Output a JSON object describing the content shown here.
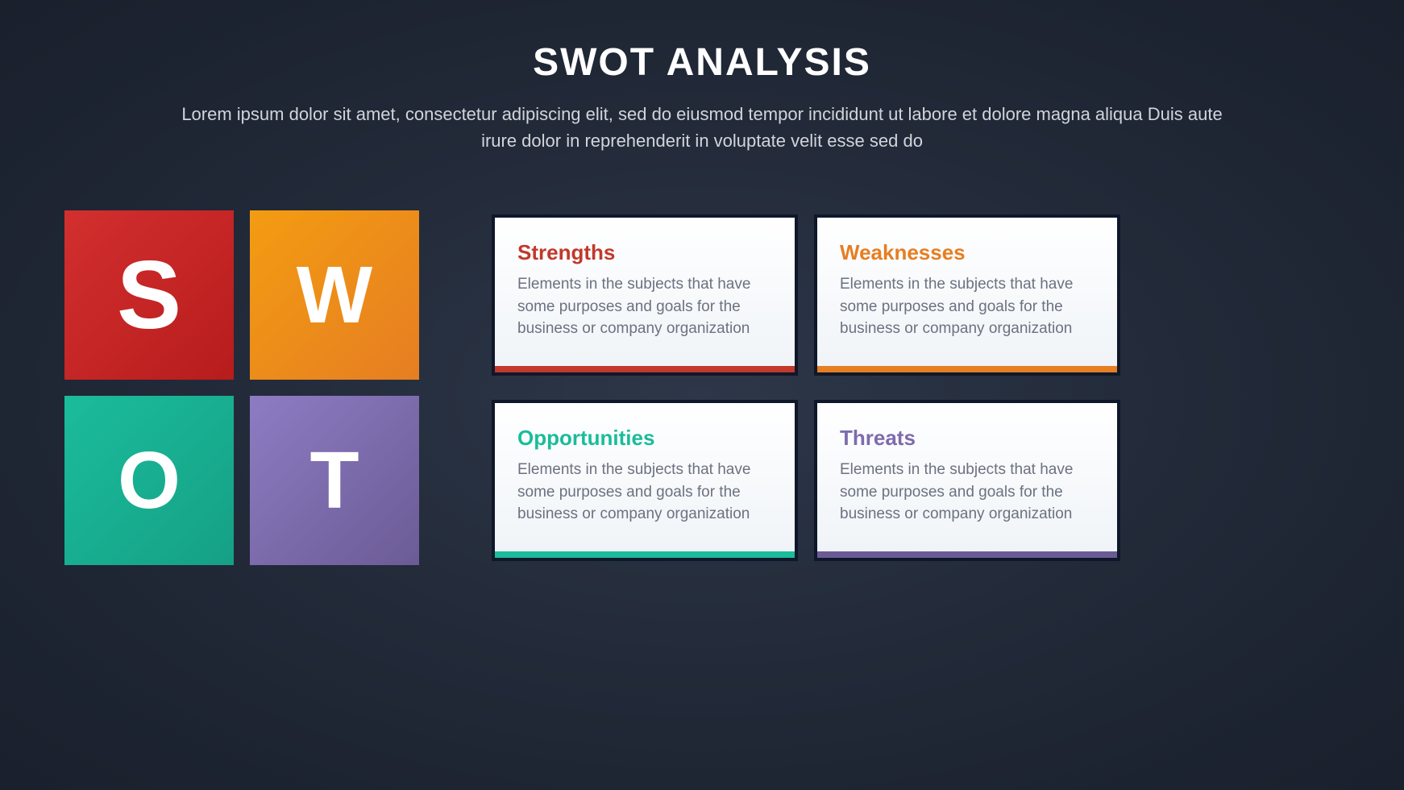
{
  "header": {
    "title": "SWOT ANALYSIS",
    "subtitle": "Lorem ipsum dolor sit amet, consectetur adipiscing elit, sed do eiusmod tempor incididunt ut labore et dolore magna aliqua Duis aute irure dolor in reprehenderit in voluptate velit esse sed do"
  },
  "blocks": [
    {
      "letter": "S",
      "bg_gradient_from": "#d32f2f",
      "bg_gradient_to": "#b71c1c",
      "class": "block-s"
    },
    {
      "letter": "W",
      "bg_gradient_from": "#f39c12",
      "bg_gradient_to": "#e67e22",
      "class": "block-w"
    },
    {
      "letter": "O",
      "bg_gradient_from": "#1abc9c",
      "bg_gradient_to": "#16a085",
      "class": "block-o"
    },
    {
      "letter": "T",
      "bg_gradient_from": "#8e7cc3",
      "bg_gradient_to": "#6b5b95",
      "class": "block-t"
    }
  ],
  "cards": [
    {
      "title": "Strengths",
      "title_color": "#c0392b",
      "body": "Elements in the subjects that have some purposes and goals for the business or company organization",
      "accent_color": "#c0392b"
    },
    {
      "title": "Weaknesses",
      "title_color": "#e67e22",
      "body": "Elements in the subjects that have some purposes and goals for the business or company organization",
      "accent_color": "#e67e22"
    },
    {
      "title": "Opportunities",
      "title_color": "#1abc9c",
      "body": "Elements in the subjects that have some purposes and goals for the business or company organization",
      "accent_color": "#1abc9c"
    },
    {
      "title": "Threats",
      "title_color": "#7e6bad",
      "body": "Elements in the subjects that have some purposes and goals for the business or company organization",
      "accent_color": "#6b5b95"
    }
  ],
  "styling": {
    "background_color": "#1e2533",
    "title_color": "#ffffff",
    "subtitle_color": "#d1d5db",
    "card_border_color": "#0f172a",
    "card_body_color": "#6b7280",
    "title_fontsize": 48,
    "subtitle_fontsize": 22,
    "card_title_fontsize": 26,
    "card_body_fontsize": 19
  }
}
